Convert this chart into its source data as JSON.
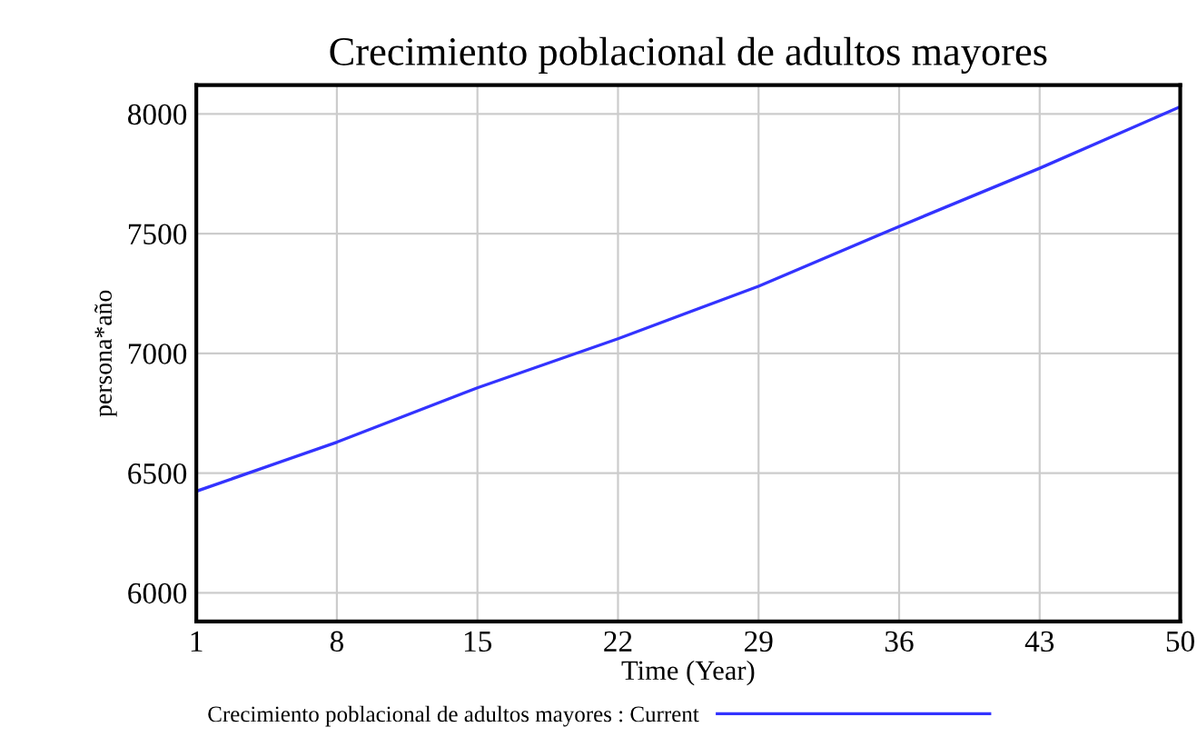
{
  "chart_data": {
    "type": "line",
    "title": "Crecimiento poblacional de adultos mayores",
    "xlabel": "Time (Year)",
    "ylabel": "persona*año",
    "x": [
      1,
      8,
      15,
      22,
      29,
      36,
      43,
      50
    ],
    "series": [
      {
        "name": "Crecimiento poblacional de adultos mayores : Current",
        "color": "#3333ff",
        "values": [
          6424,
          6629,
          6856,
          7061,
          7280,
          7530,
          7773,
          8030
        ]
      }
    ],
    "xlim": [
      1,
      50
    ],
    "ylim": [
      5880,
      8120
    ],
    "xticks": [
      1,
      8,
      15,
      22,
      29,
      36,
      43,
      50
    ],
    "yticks": [
      6000,
      6500,
      7000,
      7500,
      8000
    ],
    "grid": true,
    "legend": "bottom",
    "marker": "none",
    "line_style": "solid"
  }
}
